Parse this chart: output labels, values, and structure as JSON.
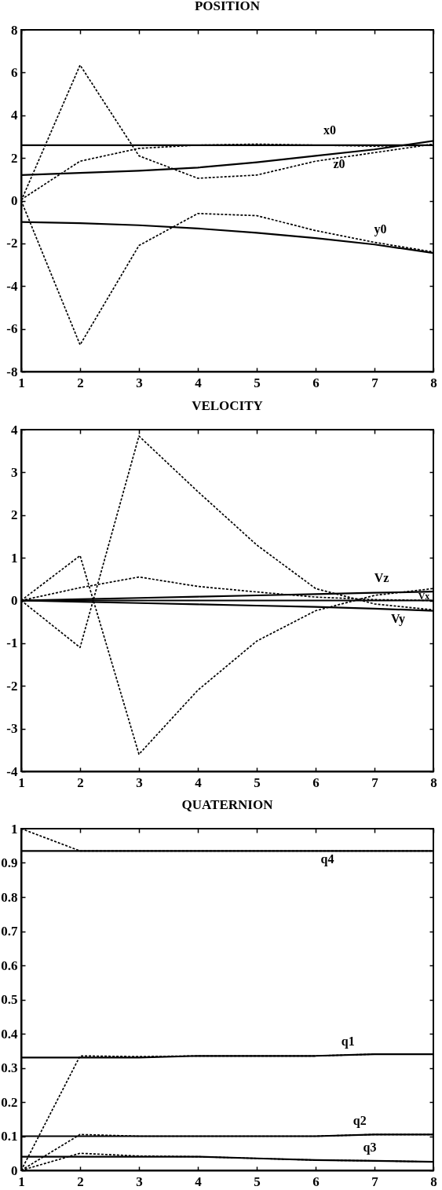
{
  "chart_data": [
    {
      "type": "line",
      "title": "POSITION",
      "x": [
        1,
        2,
        3,
        4,
        5,
        6,
        7,
        8
      ],
      "xlim": [
        1,
        8
      ],
      "xticks": [
        1,
        2,
        3,
        4,
        5,
        6,
        7,
        8
      ],
      "ylim": [
        -8,
        8
      ],
      "yticks": [
        -8,
        -6,
        -4,
        -2,
        0,
        2,
        4,
        6,
        8
      ],
      "series": [
        {
          "name": "x0",
          "color": "#000000",
          "line_style": "solid",
          "values": [
            2.6,
            2.6,
            2.6,
            2.6,
            2.6,
            2.6,
            2.6,
            2.6
          ]
        },
        {
          "name": "z0",
          "color": "#000000",
          "line_style": "solid",
          "values": [
            1.2,
            1.3,
            1.4,
            1.55,
            1.8,
            2.1,
            2.4,
            2.8
          ]
        },
        {
          "name": "y0",
          "color": "#000000",
          "line_style": "solid",
          "values": [
            -1,
            -1.05,
            -1.15,
            -1.3,
            -1.5,
            -1.75,
            -2.05,
            -2.45
          ]
        },
        {
          "color": "#000000",
          "line_style": "dashed",
          "values": [
            0,
            6.35,
            2.1,
            1.05,
            1.2,
            1.85,
            2.25,
            2.65
          ]
        },
        {
          "color": "#000000",
          "line_style": "dashed",
          "values": [
            0.05,
            1.85,
            2.45,
            2.6,
            2.65,
            2.6,
            2.55,
            2.6
          ]
        },
        {
          "color": "#000000",
          "line_style": "dashed",
          "values": [
            0,
            -6.75,
            -2.1,
            -0.6,
            -0.7,
            -1.4,
            -1.95,
            -2.4
          ]
        }
      ]
    },
    {
      "type": "line",
      "title": "VELOCITY",
      "x": [
        1,
        2,
        3,
        4,
        5,
        6,
        7,
        8
      ],
      "xlim": [
        1,
        8
      ],
      "xticks": [
        1,
        2,
        3,
        4,
        5,
        6,
        7,
        8
      ],
      "ylim": [
        -4,
        4
      ],
      "yticks": [
        -4,
        -3,
        -2,
        -1,
        0,
        1,
        2,
        3,
        4
      ],
      "series": [
        {
          "name": "Vz",
          "color": "#000000",
          "line_style": "solid",
          "values": [
            0,
            0.03,
            0.06,
            0.09,
            0.12,
            0.15,
            0.18,
            0.21
          ]
        },
        {
          "name": "Vx",
          "color": "#000000",
          "line_style": "solid",
          "values": [
            0,
            0,
            0,
            0,
            0,
            0,
            0,
            0
          ]
        },
        {
          "name": "Vy",
          "color": "#000000",
          "line_style": "solid",
          "values": [
            0,
            -0.03,
            -0.06,
            -0.09,
            -0.12,
            -0.15,
            -0.19,
            -0.24
          ]
        },
        {
          "color": "#000000",
          "line_style": "dashed",
          "values": [
            0,
            -1.1,
            3.85,
            2.55,
            1.3,
            0.28,
            -0.08,
            -0.22
          ]
        },
        {
          "color": "#000000",
          "line_style": "dashed",
          "values": [
            0,
            1.05,
            -3.6,
            -2.1,
            -0.95,
            -0.24,
            0.12,
            0.28
          ]
        },
        {
          "color": "#000000",
          "line_style": "dashed",
          "values": [
            0,
            0.3,
            0.55,
            0.33,
            0.2,
            0.08,
            0.02,
            0
          ]
        }
      ]
    },
    {
      "type": "line",
      "title": "QUATERNION",
      "x": [
        1,
        2,
        3,
        4,
        5,
        6,
        7,
        8
      ],
      "xlim": [
        1,
        8
      ],
      "xticks": [
        1,
        2,
        3,
        4,
        5,
        6,
        7,
        8
      ],
      "ylim": [
        0,
        1
      ],
      "yticks": [
        0,
        0.1,
        0.2,
        0.3,
        0.4,
        0.5,
        0.6,
        0.7,
        0.8,
        0.9,
        1
      ],
      "series": [
        {
          "name": "q4",
          "color": "#000000",
          "line_style": "solid",
          "values": [
            0.935,
            0.935,
            0.935,
            0.935,
            0.935,
            0.935,
            0.935,
            0.935
          ]
        },
        {
          "name": "q1",
          "color": "#000000",
          "line_style": "solid",
          "values": [
            0.33,
            0.33,
            0.33,
            0.335,
            0.335,
            0.335,
            0.34,
            0.34
          ]
        },
        {
          "name": "q2",
          "color": "#000000",
          "line_style": "solid",
          "values": [
            0.1,
            0.1,
            0.1,
            0.1,
            0.1,
            0.1,
            0.105,
            0.105
          ]
        },
        {
          "name": "q3",
          "color": "#000000",
          "line_style": "solid",
          "values": [
            0.04,
            0.04,
            0.04,
            0.04,
            0.035,
            0.03,
            0.028,
            0.025
          ]
        },
        {
          "color": "#000000",
          "line_style": "dashed",
          "values": [
            1,
            0.935,
            0.935,
            0.935,
            0.935,
            0.935,
            0.935,
            0.935
          ]
        },
        {
          "color": "#000000",
          "line_style": "dashed",
          "values": [
            0,
            0.335,
            0.333,
            0.335,
            0.335,
            0.335,
            0.34,
            0.34
          ]
        },
        {
          "color": "#000000",
          "line_style": "dashed",
          "values": [
            0,
            0.105,
            0.1,
            0.1,
            0.1,
            0.1,
            0.105,
            0.105
          ]
        },
        {
          "color": "#000000",
          "line_style": "dashed",
          "values": [
            0,
            0.05,
            0.042,
            0.04,
            0.035,
            0.03,
            0.028,
            0.025
          ]
        }
      ]
    }
  ]
}
